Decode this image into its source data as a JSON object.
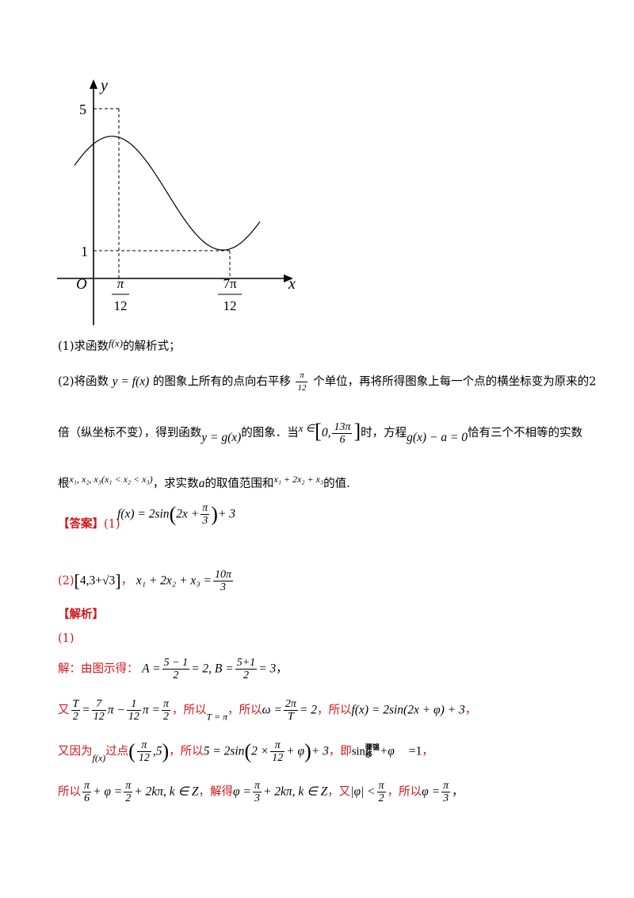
{
  "figure": {
    "y_label": "y",
    "x_label": "x",
    "origin_label": "O",
    "y_tick_max": "5",
    "y_tick_min": "1",
    "x_tick1_num": "π",
    "x_tick1_den": "12",
    "x_tick2_num": "7π",
    "x_tick2_den": "12"
  },
  "question": {
    "q1_prefix": "(1)求函数",
    "q1_func": "f(x)",
    "q1_suffix": "的解析式；",
    "q2_l1_a": "(2)将函数",
    "q2_l1_func": "y = f(x)",
    "q2_l1_b": "的图象上所有的点向右平移",
    "q2_l1_shift_num": "π",
    "q2_l1_shift_den": "12",
    "q2_l1_c": "个单位，再将所得图象上每一个点的横坐标变为原来的2",
    "q2_l2_a": "倍（纵坐标不变），得到函数",
    "q2_l2_func": "y = g(x)",
    "q2_l2_b": "的图象．当",
    "q2_l2_x": "x ∈",
    "q2_l2_zero": "0,",
    "q2_l2_num": "13π",
    "q2_l2_den": "6",
    "q2_l2_c": "时，方程",
    "q2_l2_eq": "g(x) − a = 0",
    "q2_l2_d": "恰有三个不相等的实数",
    "q2_l3_a": "根",
    "q2_l3_roots": "x₁, x₂, x₃(x₁ < x₂ < x₃)",
    "q2_l3_b": "，求实数",
    "q2_l3_a_var": "a",
    "q2_l3_c": "的取值范围和",
    "q2_l3_expr": "x₁ + 2x₂ + x₃",
    "q2_l3_d": "的值."
  },
  "answer": {
    "label": "【答案】",
    "part1_prefix": "(1)",
    "part1_expr_a": "f(x) = 2sin",
    "part1_expr_b": "2x +",
    "part1_num": "π",
    "part1_den": "3",
    "part1_expr_c": "+ 3",
    "part2_prefix": "(2)",
    "part2_interval": "4,3+√3",
    "part2_sep": "，",
    "part2_expr": "x₁ + 2x₂ + x₃ =",
    "part2_num": "10π",
    "part2_den": "3"
  },
  "analysis": {
    "label": "【解析】",
    "part1_label": "(1)",
    "s1_a": "解：由图示得：",
    "s1_A": "A =",
    "s1_A_num": "5 − 1",
    "s1_A_den": "2",
    "s1_A_rest": "= 2, B =",
    "s1_B_num": "5+1",
    "s1_B_den": "2",
    "s1_B_rest": "= 3",
    "s1_end": "，",
    "s2_a": "又",
    "s2_T_num": "T",
    "s2_T_den": "2",
    "s2_eq": "=",
    "s2_f1_num": "7",
    "s2_f1_den": "12",
    "s2_mid": "π −",
    "s2_f2_num": "1",
    "s2_f2_den": "12",
    "s2_mid2": "π =",
    "s2_f3_num": "π",
    "s2_f3_den": "2",
    "s2_b": "，所以",
    "s2_T": "T = π",
    "s2_c": "，所以",
    "s2_omega": "ω =",
    "s2_om_num": "2π",
    "s2_om_den": "T",
    "s2_om_rest": "= 2",
    "s2_d": "，所以",
    "s2_fx": "f(x) = 2sin(2x + φ) + 3",
    "s2_end": "，",
    "s3_a": "又因为",
    "s3_fx": "f(x)",
    "s3_b": "过点",
    "s3_pt_num": "π",
    "s3_pt_den": "12",
    "s3_pt_rest": ",5",
    "s3_c": "，所以",
    "s3_eq_a": "5 = 2sin",
    "s3_eq_b": "2 ×",
    "s3_eq_num": "π",
    "s3_eq_den": "12",
    "s3_eq_c": "+ φ",
    "s3_eq_d": "+ 3",
    "s3_d": "，即",
    "s3_sin": "sin",
    "s3_garble": "骤锡移",
    "s3_phi": "+φ",
    "s3_one": "=1",
    "s3_end": "，",
    "s4_a": "所以",
    "s4_f1_num": "π",
    "s4_f1_den": "6",
    "s4_b": "+ φ =",
    "s4_f2_num": "π",
    "s4_f2_den": "2",
    "s4_c": "+ 2kπ, k ∈ Z",
    "s4_d": "，解得",
    "s4_e": "φ =",
    "s4_f3_num": "π",
    "s4_f3_den": "3",
    "s4_f": "+ 2kπ, k ∈ Z",
    "s4_g": "，又",
    "s4_h": "|φ| <",
    "s4_f4_num": "π",
    "s4_f4_den": "2",
    "s4_i": "，所以",
    "s4_j": "φ =",
    "s4_f5_num": "π",
    "s4_f5_den": "3",
    "s4_end": "，"
  }
}
